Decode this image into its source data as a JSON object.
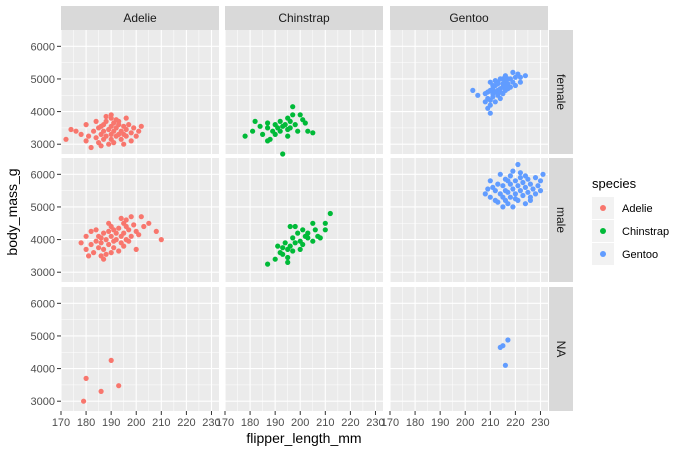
{
  "chart_data": {
    "type": "scatter",
    "xlabel": "flipper_length_mm",
    "ylabel": "body_mass_g",
    "xlim": [
      170,
      233
    ],
    "ylim": [
      2700,
      6500
    ],
    "x_ticks": [
      170,
      180,
      190,
      200,
      210,
      220,
      230
    ],
    "y_ticks": [
      3000,
      4000,
      5000,
      6000
    ],
    "grid": true,
    "legend_position": "right",
    "legend": {
      "title": "species",
      "items": [
        {
          "name": "Adelie",
          "color": "#F8766D"
        },
        {
          "name": "Chinstrap",
          "color": "#00BA38"
        },
        {
          "name": "Gentoo",
          "color": "#619CFF"
        }
      ]
    },
    "facet_columns": [
      "Adelie",
      "Chinstrap",
      "Gentoo"
    ],
    "facet_rows": [
      "female",
      "male",
      "NA"
    ],
    "panels": [
      {
        "col": "Adelie",
        "row": "female",
        "color": "#F8766D",
        "points": [
          [
            172,
            3150
          ],
          [
            174,
            3450
          ],
          [
            176,
            3400
          ],
          [
            178,
            3300
          ],
          [
            180,
            3100
          ],
          [
            180,
            3600
          ],
          [
            181,
            3250
          ],
          [
            182,
            2900
          ],
          [
            183,
            3400
          ],
          [
            184,
            3700
          ],
          [
            184,
            3200
          ],
          [
            185,
            3050
          ],
          [
            185,
            3500
          ],
          [
            186,
            3300
          ],
          [
            186,
            2950
          ],
          [
            187,
            3600
          ],
          [
            187,
            3150
          ],
          [
            187,
            3400
          ],
          [
            188,
            3250
          ],
          [
            188,
            3700
          ],
          [
            189,
            3450
          ],
          [
            189,
            3000
          ],
          [
            190,
            3550
          ],
          [
            190,
            3300
          ],
          [
            190,
            3150
          ],
          [
            190,
            3800
          ],
          [
            191,
            3400
          ],
          [
            191,
            3650
          ],
          [
            191,
            3050
          ],
          [
            192,
            3250
          ],
          [
            192,
            3500
          ],
          [
            193,
            3300
          ],
          [
            193,
            3700
          ],
          [
            193,
            3600
          ],
          [
            194,
            3400
          ],
          [
            194,
            3150
          ],
          [
            195,
            3550
          ],
          [
            195,
            3300
          ],
          [
            195,
            3000
          ],
          [
            196,
            3450
          ],
          [
            196,
            3250
          ],
          [
            197,
            3600
          ],
          [
            198,
            3350
          ],
          [
            198,
            3100
          ],
          [
            199,
            3500
          ],
          [
            200,
            3250
          ],
          [
            201,
            3400
          ],
          [
            202,
            3550
          ],
          [
            190,
            3900
          ],
          [
            188,
            3850
          ],
          [
            196,
            3800
          ],
          [
            186,
            3550
          ],
          [
            192,
            3750
          ]
        ]
      },
      {
        "col": "Chinstrap",
        "row": "female",
        "color": "#00BA38",
        "points": [
          [
            178,
            3250
          ],
          [
            181,
            3400
          ],
          [
            182,
            3700
          ],
          [
            184,
            3550
          ],
          [
            185,
            3300
          ],
          [
            187,
            3500
          ],
          [
            187,
            3650
          ],
          [
            188,
            3150
          ],
          [
            189,
            3400
          ],
          [
            190,
            3600
          ],
          [
            190,
            3300
          ],
          [
            191,
            3500
          ],
          [
            192,
            3700
          ],
          [
            192,
            3400
          ],
          [
            193,
            3550
          ],
          [
            193,
            2700
          ],
          [
            194,
            3600
          ],
          [
            195,
            3450
          ],
          [
            195,
            3800
          ],
          [
            195,
            3250
          ],
          [
            196,
            3700
          ],
          [
            196,
            3500
          ],
          [
            197,
            3900
          ],
          [
            197,
            4150
          ],
          [
            198,
            3600
          ],
          [
            199,
            3400
          ],
          [
            200,
            3900
          ],
          [
            201,
            3750
          ],
          [
            202,
            3650
          ],
          [
            203,
            3400
          ],
          [
            205,
            3350
          ],
          [
            187,
            3100
          ]
        ]
      },
      {
        "col": "Gentoo",
        "row": "female",
        "color": "#619CFF",
        "points": [
          [
            203,
            4650
          ],
          [
            205,
            4500
          ],
          [
            208,
            4550
          ],
          [
            208,
            4300
          ],
          [
            209,
            4600
          ],
          [
            209,
            4400
          ],
          [
            210,
            4200
          ],
          [
            210,
            4900
          ],
          [
            210,
            3950
          ],
          [
            210,
            4350
          ],
          [
            211,
            4700
          ],
          [
            211,
            4450
          ],
          [
            211,
            4550
          ],
          [
            212,
            4800
          ],
          [
            212,
            4600
          ],
          [
            212,
            4300
          ],
          [
            213,
            4650
          ],
          [
            213,
            4900
          ],
          [
            213,
            4500
          ],
          [
            214,
            4700
          ],
          [
            214,
            4400
          ],
          [
            214,
            5000
          ],
          [
            215,
            4750
          ],
          [
            215,
            4550
          ],
          [
            215,
            4850
          ],
          [
            216,
            4650
          ],
          [
            216,
            4950
          ],
          [
            216,
            5100
          ],
          [
            217,
            4700
          ],
          [
            217,
            4850
          ],
          [
            218,
            5000
          ],
          [
            218,
            4750
          ],
          [
            219,
            4900
          ],
          [
            220,
            5050
          ],
          [
            220,
            4800
          ],
          [
            221,
            5150
          ],
          [
            222,
            4900
          ],
          [
            222,
            5050
          ],
          [
            209,
            4100
          ],
          [
            210,
            4650
          ],
          [
            211,
            4800
          ],
          [
            212,
            4950
          ],
          [
            213,
            4850
          ],
          [
            214,
            4600
          ],
          [
            215,
            5000
          ],
          [
            216,
            4800
          ],
          [
            217,
            5000
          ],
          [
            219,
            5200
          ],
          [
            224,
            5100
          ]
        ]
      },
      {
        "col": "Adelie",
        "row": "male",
        "color": "#F8766D",
        "points": [
          [
            178,
            3900
          ],
          [
            180,
            3700
          ],
          [
            180,
            4100
          ],
          [
            181,
            3500
          ],
          [
            182,
            3850
          ],
          [
            183,
            3600
          ],
          [
            184,
            3950
          ],
          [
            184,
            4300
          ],
          [
            185,
            3750
          ],
          [
            185,
            4100
          ],
          [
            186,
            3500
          ],
          [
            186,
            3900
          ],
          [
            187,
            4200
          ],
          [
            187,
            3700
          ],
          [
            188,
            4000
          ],
          [
            188,
            3550
          ],
          [
            189,
            4250
          ],
          [
            189,
            3850
          ],
          [
            190,
            4100
          ],
          [
            190,
            3600
          ],
          [
            190,
            4400
          ],
          [
            191,
            3950
          ],
          [
            191,
            3750
          ],
          [
            192,
            4200
          ],
          [
            192,
            4000
          ],
          [
            193,
            3650
          ],
          [
            193,
            4350
          ],
          [
            194,
            3900
          ],
          [
            194,
            4100
          ],
          [
            195,
            4500
          ],
          [
            195,
            3800
          ],
          [
            195,
            4200
          ],
          [
            196,
            4000
          ],
          [
            196,
            4600
          ],
          [
            197,
            3950
          ],
          [
            197,
            4300
          ],
          [
            198,
            4100
          ],
          [
            198,
            4700
          ],
          [
            199,
            4450
          ],
          [
            200,
            3700
          ],
          [
            200,
            4250
          ],
          [
            201,
            4150
          ],
          [
            202,
            4700
          ],
          [
            203,
            4400
          ],
          [
            205,
            4500
          ],
          [
            208,
            4250
          ],
          [
            210,
            4000
          ],
          [
            189,
            4500
          ],
          [
            191,
            4300
          ],
          [
            194,
            4650
          ],
          [
            196,
            4400
          ],
          [
            186,
            4050
          ],
          [
            182,
            4250
          ],
          [
            187,
            3400
          ]
        ]
      },
      {
        "col": "Chinstrap",
        "row": "male",
        "color": "#00BA38",
        "points": [
          [
            187,
            3250
          ],
          [
            190,
            3400
          ],
          [
            191,
            3800
          ],
          [
            192,
            3600
          ],
          [
            193,
            3750
          ],
          [
            193,
            3550
          ],
          [
            194,
            3900
          ],
          [
            195,
            3450
          ],
          [
            195,
            3700
          ],
          [
            196,
            4400
          ],
          [
            196,
            3800
          ],
          [
            197,
            4050
          ],
          [
            197,
            3650
          ],
          [
            198,
            3900
          ],
          [
            199,
            4200
          ],
          [
            200,
            3950
          ],
          [
            201,
            4300
          ],
          [
            201,
            3850
          ],
          [
            202,
            4100
          ],
          [
            203,
            4050
          ],
          [
            205,
            4500
          ],
          [
            205,
            3950
          ],
          [
            206,
            4300
          ],
          [
            207,
            4100
          ],
          [
            208,
            4050
          ],
          [
            210,
            4500
          ],
          [
            210,
            4300
          ],
          [
            212,
            4800
          ],
          [
            198,
            4400
          ],
          [
            203,
            4200
          ],
          [
            195,
            3300
          ],
          [
            200,
            3700
          ]
        ]
      },
      {
        "col": "Gentoo",
        "row": "male",
        "color": "#619CFF",
        "points": [
          [
            208,
            5400
          ],
          [
            209,
            5550
          ],
          [
            210,
            5300
          ],
          [
            210,
            5800
          ],
          [
            211,
            5600
          ],
          [
            212,
            5200
          ],
          [
            212,
            5500
          ],
          [
            213,
            5700
          ],
          [
            214,
            5400
          ],
          [
            214,
            6000
          ],
          [
            215,
            5300
          ],
          [
            215,
            5650
          ],
          [
            216,
            5500
          ],
          [
            216,
            5850
          ],
          [
            217,
            5100
          ],
          [
            217,
            5450
          ],
          [
            218,
            5700
          ],
          [
            218,
            5300
          ],
          [
            219,
            5550
          ],
          [
            219,
            6100
          ],
          [
            220,
            5400
          ],
          [
            220,
            5800
          ],
          [
            221,
            5200
          ],
          [
            221,
            5650
          ],
          [
            222,
            5500
          ],
          [
            222,
            5900
          ],
          [
            223,
            5350
          ],
          [
            223,
            5750
          ],
          [
            224,
            5600
          ],
          [
            224,
            5100
          ],
          [
            225,
            5450
          ],
          [
            225,
            5850
          ],
          [
            226,
            5300
          ],
          [
            226,
            5700
          ],
          [
            227,
            5550
          ],
          [
            228,
            5400
          ],
          [
            228,
            5900
          ],
          [
            229,
            5650
          ],
          [
            230,
            5500
          ],
          [
            230,
            5800
          ],
          [
            231,
            6000
          ],
          [
            213,
            5150
          ],
          [
            215,
            5000
          ],
          [
            216,
            5200
          ],
          [
            217,
            5800
          ],
          [
            219,
            5000
          ],
          [
            221,
            6300
          ],
          [
            222,
            6050
          ],
          [
            224,
            5950
          ],
          [
            226,
            5200
          ],
          [
            218,
            5950
          ],
          [
            220,
            5250
          ]
        ]
      },
      {
        "col": "Adelie",
        "row": "NA",
        "color": "#F8766D",
        "points": [
          [
            179,
            3000
          ],
          [
            180,
            3700
          ],
          [
            186,
            3300
          ],
          [
            190,
            4250
          ],
          [
            193,
            3475
          ]
        ]
      },
      {
        "col": "Chinstrap",
        "row": "NA",
        "color": "#00BA38",
        "points": []
      },
      {
        "col": "Gentoo",
        "row": "NA",
        "color": "#619CFF",
        "points": [
          [
            214,
            4650
          ],
          [
            215,
            4700
          ],
          [
            216,
            4100
          ],
          [
            217,
            4875
          ]
        ]
      }
    ]
  }
}
